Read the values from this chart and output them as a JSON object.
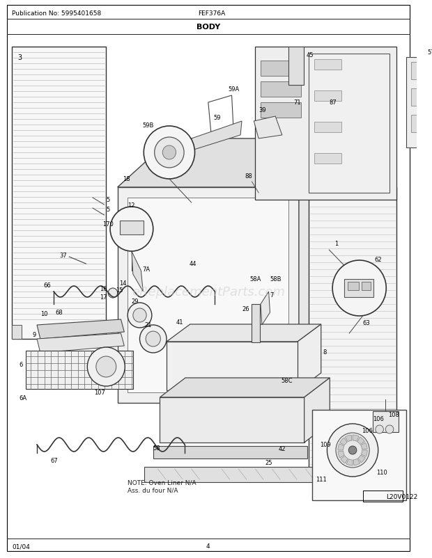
{
  "title": "BODY",
  "pub_no": "Publication No: 5995401658",
  "model": "FEF376A",
  "date": "01/04",
  "page": "4",
  "watermark": "eReplacementParts.com",
  "logo": "L20V0122",
  "note": "NOTE: Oven Liner N/A\nAss. du four N/A",
  "bg_color": "#ffffff",
  "text_color": "#000000",
  "figsize": [
    6.2,
    8.03
  ],
  "dpi": 100
}
